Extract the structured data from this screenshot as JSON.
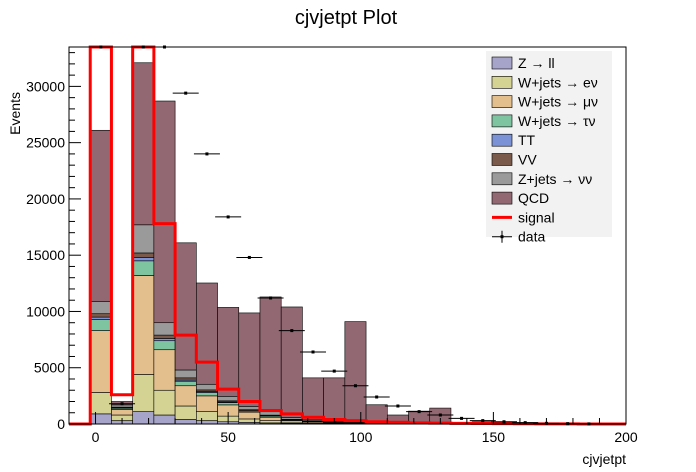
{
  "chart_data": {
    "type": "bar",
    "stacked": true,
    "title": "cjvjetpt Plot",
    "xlabel": "cjvjetpt",
    "ylabel": "Events",
    "xlim": [
      -10,
      200
    ],
    "ylim": [
      0,
      33500
    ],
    "xticks": [
      0,
      50,
      100,
      150,
      200
    ],
    "yticks": [
      0,
      5000,
      10000,
      15000,
      20000,
      25000,
      30000
    ],
    "grid": false,
    "legend_position": "top-right",
    "bin_edges": [
      -10,
      -2,
      6,
      14,
      22,
      30,
      38,
      46,
      54,
      62,
      70,
      78,
      86,
      94,
      102,
      110,
      118,
      126,
      134,
      142,
      150,
      158,
      166,
      174,
      182,
      190,
      200
    ],
    "series": [
      {
        "name": "Z → ll",
        "color": "#a6a4c8",
        "values": [
          0,
          900,
          300,
          1100,
          800,
          400,
          300,
          200,
          150,
          100,
          60,
          40,
          30,
          20,
          10,
          10,
          5,
          5,
          0,
          0,
          0,
          0,
          0,
          0,
          0,
          0
        ]
      },
      {
        "name": "W+jets → eν",
        "color": "#d5d394",
        "values": [
          0,
          1900,
          500,
          3300,
          2200,
          1200,
          800,
          500,
          300,
          200,
          100,
          60,
          40,
          30,
          20,
          10,
          10,
          0,
          0,
          0,
          0,
          0,
          0,
          0,
          0,
          0
        ]
      },
      {
        "name": "W+jets → μν",
        "color": "#e2bf8d",
        "values": [
          0,
          5500,
          500,
          8800,
          3600,
          1800,
          1400,
          1000,
          600,
          300,
          150,
          100,
          60,
          40,
          30,
          20,
          10,
          0,
          0,
          0,
          0,
          0,
          0,
          0,
          0,
          0
        ]
      },
      {
        "name": "W+jets → τν",
        "color": "#7fc4a0",
        "values": [
          0,
          1000,
          100,
          1300,
          800,
          400,
          300,
          200,
          100,
          100,
          50,
          30,
          20,
          10,
          10,
          0,
          0,
          0,
          0,
          0,
          0,
          0,
          0,
          0,
          0,
          0
        ]
      },
      {
        "name": "TT",
        "color": "#7b93d6",
        "values": [
          0,
          200,
          50,
          300,
          200,
          100,
          80,
          60,
          40,
          30,
          20,
          10,
          10,
          0,
          0,
          0,
          0,
          0,
          0,
          0,
          0,
          0,
          0,
          0,
          0,
          0
        ]
      },
      {
        "name": "VV",
        "color": "#7a5a4a",
        "values": [
          0,
          300,
          50,
          400,
          300,
          200,
          150,
          100,
          80,
          60,
          40,
          30,
          20,
          10,
          10,
          0,
          0,
          0,
          0,
          0,
          0,
          0,
          0,
          0,
          0,
          0
        ]
      },
      {
        "name": "Z+jets → νν",
        "color": "#9a9a9a",
        "values": [
          0,
          1100,
          200,
          2500,
          1100,
          700,
          500,
          400,
          300,
          300,
          150,
          100,
          80,
          60,
          40,
          30,
          20,
          10,
          0,
          0,
          0,
          0,
          0,
          0,
          0,
          0
        ]
      },
      {
        "name": "QCD",
        "color": "#926872",
        "values": [
          0,
          15200,
          300,
          14400,
          19700,
          11300,
          9000,
          7900,
          8300,
          10200,
          9830,
          3730,
          3840,
          8930,
          1590,
          730,
          1100,
          1400,
          100,
          200,
          150,
          100,
          80,
          80,
          40,
          10
        ]
      }
    ],
    "signal": {
      "name": "signal",
      "color": "#ff0000",
      "values": [
        0,
        33500,
        2600,
        33500,
        17800,
        7900,
        5500,
        3100,
        2000,
        1200,
        900,
        600,
        400,
        300,
        200,
        150,
        100,
        80,
        60,
        40,
        30,
        20,
        15,
        10,
        5,
        0
      ]
    },
    "data": {
      "name": "data",
      "x": [
        -6,
        2,
        10,
        18,
        26,
        34,
        42,
        50,
        58,
        66,
        74,
        82,
        90,
        98,
        106,
        114,
        122,
        130,
        138,
        146,
        154,
        162,
        170,
        178,
        186,
        195
      ],
      "y": [
        0,
        33500,
        1800,
        33500,
        33500,
        29400,
        24000,
        18400,
        14800,
        11200,
        8300,
        6400,
        4700,
        3400,
        2400,
        1600,
        1100,
        800,
        500,
        300,
        200,
        120,
        60,
        30,
        10,
        0
      ]
    }
  }
}
